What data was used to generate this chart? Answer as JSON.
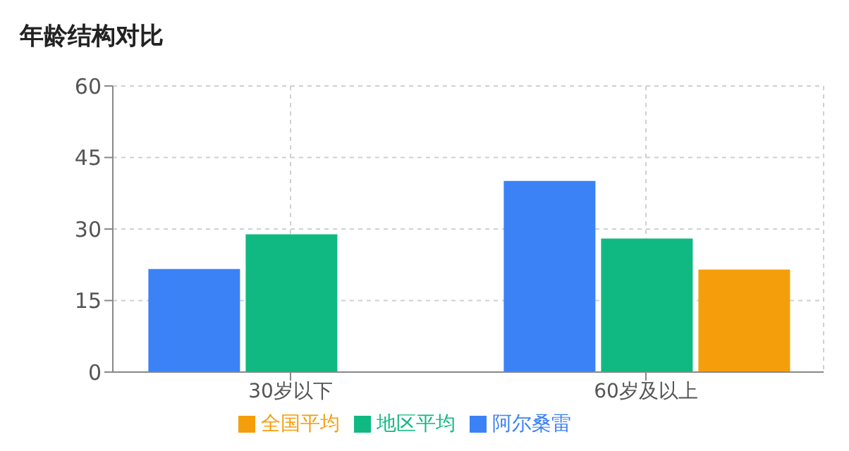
{
  "chart_data": {
    "type": "bar",
    "title": "年龄结构对比",
    "categories": [
      "30岁以下",
      "60岁及以上"
    ],
    "series": [
      {
        "name": "阿尔桑雷",
        "color": "#3b82f6",
        "values": [
          21.6,
          40.1
        ]
      },
      {
        "name": "地区平均",
        "color": "#10b981",
        "values": [
          28.9,
          28.0
        ]
      },
      {
        "name": "全国平均",
        "color": "#f59e0b",
        "values": [
          null,
          21.5
        ]
      }
    ],
    "ylim": [
      0,
      60
    ],
    "yticks": [
      0,
      15,
      30,
      45,
      60
    ],
    "grid": true,
    "legend": "bottom"
  }
}
